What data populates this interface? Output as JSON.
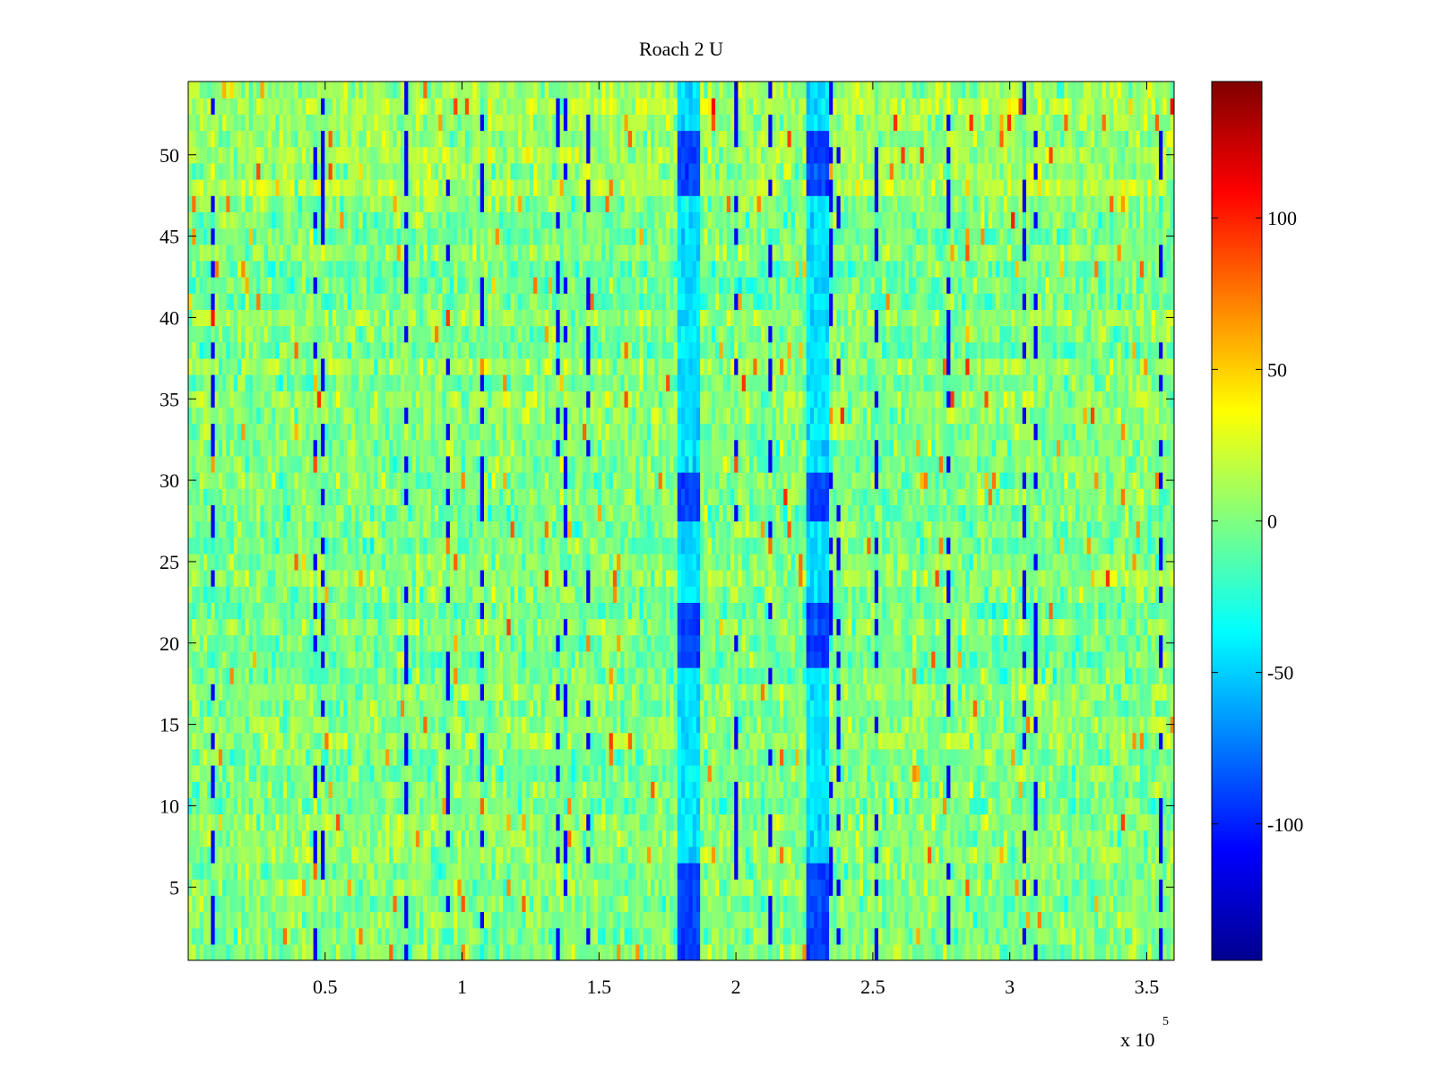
{
  "chart_data": {
    "type": "heatmap",
    "title": "Roach 2 U",
    "xlabel": "",
    "ylabel": "",
    "x_multiplier_label": "x 10",
    "x_multiplier_exponent": "5",
    "xlim": [
      0.0,
      3.6
    ],
    "ylim": [
      0.5,
      54.5
    ],
    "x_ticks": [
      0.5,
      1,
      1.5,
      2,
      2.5,
      3,
      3.5
    ],
    "x_tick_labels": [
      "0.5",
      "1",
      "1.5",
      "2",
      "2.5",
      "3",
      "3.5"
    ],
    "y_ticks": [
      5,
      10,
      15,
      20,
      25,
      30,
      35,
      40,
      45,
      50
    ],
    "y_tick_labels": [
      "5",
      "10",
      "15",
      "20",
      "25",
      "30",
      "35",
      "40",
      "45",
      "50"
    ],
    "rows": 54,
    "colorbar": {
      "colormap": "jet",
      "range": [
        -145,
        145
      ],
      "ticks": [
        -100,
        -50,
        0,
        50,
        100
      ],
      "tick_labels": [
        "-100",
        "-50",
        "0",
        "50",
        "100"
      ]
    },
    "background_level_approx": 0,
    "features": [
      {
        "description": "vertical low-value band",
        "x_center": 1.83,
        "value_approx": -90,
        "strong_rows": [
          1,
          2,
          3,
          4,
          5,
          6,
          19,
          20,
          21,
          22,
          28,
          29,
          30,
          48,
          49,
          50,
          51
        ]
      },
      {
        "description": "vertical low-value band",
        "x_center": 2.3,
        "value_approx": -90,
        "strong_rows": [
          1,
          2,
          3,
          4,
          5,
          6,
          19,
          20,
          21,
          22,
          28,
          29,
          30,
          48,
          49,
          50,
          51
        ]
      }
    ]
  }
}
